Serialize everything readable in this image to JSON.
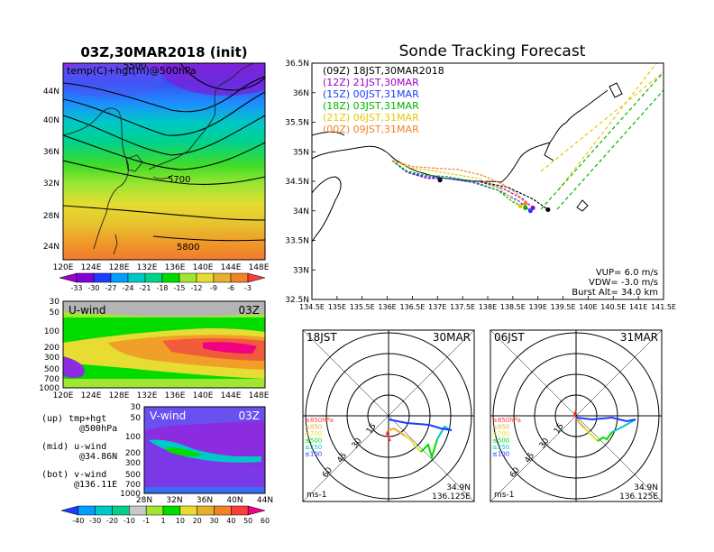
{
  "left": {
    "title": "03Z,30MAR2018 (init)",
    "map_label": "temp(C)+hgt(m)@500hPa",
    "contour_labels": [
      "5500",
      "5700",
      "5800"
    ],
    "lat_ticks": [
      "44N",
      "40N",
      "36N",
      "32N",
      "28N",
      "24N"
    ],
    "lon_ticks": [
      "120E",
      "124E",
      "128E",
      "132E",
      "136E",
      "140E",
      "144E",
      "148E"
    ],
    "temp_colorbar": [
      "-33",
      "-30",
      "-27",
      "-24",
      "-21",
      "-18",
      "-15",
      "-12",
      "-9",
      "-6",
      "-3"
    ],
    "temp_colors": [
      "#a000c8",
      "#8200dc",
      "#1e3cff",
      "#00a0ff",
      "#00c8c8",
      "#00d28c",
      "#00dc00",
      "#a0e632",
      "#e6dc32",
      "#e6af2d",
      "#f08228",
      "#fa3c3c"
    ],
    "uwind_label": "U-wind",
    "uwind_time": "03Z",
    "uwind_pressure_ticks": [
      "30",
      "50",
      "100",
      "200",
      "300",
      "500",
      "700",
      "1000"
    ],
    "uwind_lon_ticks": [
      "120E",
      "124E",
      "128E",
      "132E",
      "136E",
      "140E",
      "144E",
      "148E"
    ],
    "vwind_label": "V-wind",
    "vwind_time": "03Z",
    "vwind_pressure_ticks": [
      "30",
      "50",
      "100",
      "200",
      "300",
      "500",
      "700",
      "1000"
    ],
    "vwind_lat_ticks": [
      "28N",
      "32N",
      "36N",
      "40N",
      "44N"
    ],
    "wind_colorbar": [
      "-40",
      "-30",
      "-20",
      "-10",
      "-1",
      "1",
      "10",
      "20",
      "30",
      "40",
      "50",
      "60"
    ],
    "wind_colors": [
      "#1e3cff",
      "#00a0ff",
      "#00c8c8",
      "#00d28c",
      "#c8c8c8",
      "#a0e632",
      "#00dc00",
      "#e6dc32",
      "#e6af2d",
      "#f08228",
      "#fa3c3c",
      "#f00082"
    ],
    "legend": {
      "up": "(up) tmp+hgt",
      "up2": "@500hPa",
      "mid": "(mid) u-wind",
      "mid2": "@34.86N",
      "bot": "(bot) v-wind",
      "bot2": "@136.11E"
    }
  },
  "tracking": {
    "title": "Sonde Tracking Forecast",
    "lat_ticks": [
      "36.5N",
      "36N",
      "35.5N",
      "35N",
      "34.5N",
      "34N",
      "33.5N",
      "33N",
      "32.5N"
    ],
    "lon_ticks": [
      "134.5E",
      "135E",
      "135.5E",
      "136E",
      "136.5E",
      "137E",
      "137.5E",
      "138E",
      "138.5E",
      "139E",
      "139.5E",
      "140E",
      "140.5E",
      "141E",
      "141.5E"
    ],
    "runs": [
      {
        "label": "(09Z)  18JST,30MAR2018",
        "color": "#000000"
      },
      {
        "label": "(12Z)  21JST,30MAR",
        "color": "#a000c8"
      },
      {
        "label": "(15Z)  00JST,31MAR",
        "color": "#1e3cff"
      },
      {
        "label": "(18Z)  03JST,31MAR",
        "color": "#00b400"
      },
      {
        "label": "(21Z)  06JST,31MAR",
        "color": "#e6c800"
      },
      {
        "label": "(00Z)  09JST,31MAR",
        "color": "#f08228"
      }
    ],
    "params": {
      "vup": "VUP= 6.0 m/s",
      "vdw": "VDW= -3.0 m/s",
      "burst": "Burst Alt= 34.0 km"
    }
  },
  "hodo1": {
    "time": "18JST",
    "date": "30MAR",
    "rings": [
      "15",
      "30",
      "45",
      "60"
    ],
    "levels": [
      "≥850hPa",
      "≤850",
      "≤700",
      "≤500",
      "≤250",
      "≤100"
    ],
    "level_colors": [
      "#fa3c3c",
      "#e6af2d",
      "#e6dc32",
      "#00dc00",
      "#00c8c8",
      "#1e3cff"
    ],
    "unit": "ms-1",
    "lat": "34.9N",
    "lon": "136.125E"
  },
  "hodo2": {
    "time": "06JST",
    "date": "31MAR",
    "rings": [
      "15",
      "30",
      "45",
      "60"
    ],
    "levels": [
      "≥850hPa",
      "≤850",
      "≤700",
      "≤500",
      "≤250",
      "≤100"
    ],
    "level_colors": [
      "#fa3c3c",
      "#e6af2d",
      "#e6dc32",
      "#00dc00",
      "#00c8c8",
      "#1e3cff"
    ],
    "unit": "ms-1",
    "lat": "34.9N",
    "lon": "136.125E"
  },
  "chart_data": [
    {
      "type": "heatmap",
      "title": "03Z,30MAR2018 (init)",
      "subtitle": "temp(C)+hgt(m)@500hPa",
      "x": [
        "120E",
        "124E",
        "128E",
        "132E",
        "136E",
        "140E",
        "144E",
        "148E"
      ],
      "y": [
        "44N",
        "40N",
        "36N",
        "32N",
        "28N",
        "24N"
      ],
      "contour_labels": [
        5500,
        5700,
        5800
      ],
      "colorbar": [
        -33,
        -30,
        -27,
        -24,
        -21,
        -18,
        -15,
        -12,
        -9,
        -6,
        -3
      ]
    },
    {
      "type": "heatmap",
      "title": "U-wind",
      "x": [
        "120E",
        "124E",
        "128E",
        "132E",
        "136E",
        "140E",
        "144E",
        "148E"
      ],
      "y": [
        30,
        50,
        100,
        200,
        300,
        500,
        700,
        1000
      ],
      "colorbar": [
        -40,
        -30,
        -20,
        -10,
        -1,
        1,
        10,
        20,
        30,
        40,
        50,
        60
      ]
    },
    {
      "type": "heatmap",
      "title": "V-wind",
      "x": [
        "28N",
        "32N",
        "36N",
        "40N",
        "44N"
      ],
      "y": [
        30,
        50,
        100,
        200,
        300,
        500,
        700,
        1000
      ],
      "colorbar": [
        -40,
        -30,
        -20,
        -10,
        -1,
        1,
        10,
        20,
        30,
        40,
        50,
        60
      ]
    },
    {
      "type": "line",
      "title": "Sonde Tracking Forecast",
      "xlim": [
        134.5,
        141.5
      ],
      "ylim": [
        32.5,
        36.5
      ],
      "series": [
        {
          "name": "(09Z)  18JST,30MAR2018",
          "x": [
            136.1,
            136.4,
            136.8,
            137.2,
            137.8,
            138.4,
            138.9,
            139.2
          ],
          "y": [
            34.85,
            34.65,
            34.55,
            34.55,
            34.5,
            34.4,
            34.2,
            34.02
          ]
        },
        {
          "name": "(12Z)  21JST,30MAR",
          "x": [
            136.1,
            136.4,
            136.8,
            137.2,
            137.8,
            138.3,
            138.7,
            138.9
          ],
          "y": [
            34.85,
            34.65,
            34.55,
            34.55,
            34.5,
            34.38,
            34.2,
            34.05
          ]
        },
        {
          "name": "(15Z)  00JST,31MAR",
          "x": [
            136.1,
            136.4,
            136.8,
            137.2,
            137.7,
            138.2,
            138.6,
            138.85
          ],
          "y": [
            34.85,
            34.65,
            34.58,
            34.55,
            34.48,
            34.35,
            34.18,
            34.0
          ]
        },
        {
          "name": "(18Z)  03JST,31MAR",
          "x": [
            136.1,
            136.4,
            136.8,
            137.2,
            137.7,
            138.2,
            138.5,
            138.75
          ],
          "y": [
            34.85,
            34.67,
            34.6,
            34.58,
            34.5,
            34.35,
            34.15,
            34.05
          ]
        },
        {
          "name": "(21Z)  06JST,31MAR",
          "x": [
            136.1,
            136.5,
            136.9,
            137.3,
            137.8,
            138.2,
            138.5,
            138.65
          ],
          "y": [
            34.85,
            34.72,
            34.68,
            34.62,
            34.55,
            34.4,
            34.2,
            34.08
          ]
        },
        {
          "name": "(00Z)  09JST,31MAR",
          "x": [
            136.1,
            136.5,
            137.0,
            137.4,
            137.9,
            138.3,
            138.6,
            138.75
          ],
          "y": [
            34.85,
            34.75,
            34.72,
            34.7,
            34.6,
            34.45,
            34.28,
            34.12
          ]
        }
      ]
    }
  ]
}
